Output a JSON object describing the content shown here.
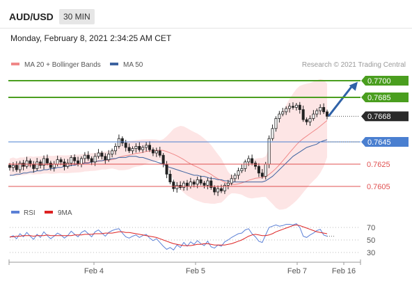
{
  "header": {
    "symbol": "AUD/USD",
    "timeframe": "30 MIN",
    "datetime": "Monday, February 8, 2021 2:34:25 AM CET"
  },
  "legend": {
    "ma20_label": "MA 20 + Bollinger Bands",
    "ma50_label": "MA 50",
    "copyright": "Research © 2021 Trading Central"
  },
  "rsi_legend": {
    "rsi_label": "RSI",
    "ma_label": "9MA"
  },
  "colors": {
    "resistance": "#4a9e1f",
    "support_blue": "#4a7fd0",
    "support_red": "#e05050",
    "last_price": "#2a2a2a",
    "candle": "#222222",
    "bollinger_fill": "#fde2e2",
    "ma20": "#f08888",
    "ma50": "#3d63a0",
    "arrow": "#2f62a8",
    "rsi": "#5b80d6",
    "rsi_ma": "#dd2222"
  },
  "chart_data": [
    {
      "type": "candlestick",
      "ylim": [
        0.7585,
        0.771
      ],
      "x_ticks": [
        "Feb 4",
        "Feb 5",
        "Feb 7",
        "Feb 16"
      ],
      "levels": [
        {
          "value": 0.77,
          "label": "0.7700",
          "kind": "resistance"
        },
        {
          "value": 0.7685,
          "label": "0.7685",
          "kind": "resistance"
        },
        {
          "value": 0.7668,
          "label": "0.7668",
          "kind": "last"
        },
        {
          "value": 0.7645,
          "label": "0.7645",
          "kind": "support_blue"
        },
        {
          "value": 0.7625,
          "label": "0.7625",
          "kind": "support_red"
        },
        {
          "value": 0.7605,
          "label": "0.7605",
          "kind": "support_red"
        }
      ],
      "closes": [
        0.7622,
        0.7624,
        0.762,
        0.7626,
        0.7623,
        0.7628,
        0.7625,
        0.7621,
        0.7627,
        0.7624,
        0.763,
        0.7626,
        0.7622,
        0.7625,
        0.7629,
        0.7627,
        0.7623,
        0.7626,
        0.7631,
        0.7628,
        0.7625,
        0.763,
        0.7633,
        0.763,
        0.7627,
        0.7632,
        0.7635,
        0.7632,
        0.7629,
        0.7634,
        0.7637,
        0.7641,
        0.7648,
        0.7644,
        0.764,
        0.7637,
        0.7639,
        0.7641,
        0.7638,
        0.764,
        0.7642,
        0.7638,
        0.7635,
        0.7637,
        0.7633,
        0.7625,
        0.7616,
        0.7609,
        0.7603,
        0.7606,
        0.7604,
        0.7608,
        0.7605,
        0.7609,
        0.7607,
        0.7611,
        0.7608,
        0.7606,
        0.761,
        0.7604,
        0.76,
        0.7603,
        0.7601,
        0.7606,
        0.7608,
        0.7612,
        0.7615,
        0.7619,
        0.7621,
        0.7627,
        0.763,
        0.7626,
        0.7623,
        0.7617,
        0.7614,
        0.7625,
        0.7648,
        0.7657,
        0.7666,
        0.767,
        0.7672,
        0.7675,
        0.7677,
        0.7676,
        0.7678,
        0.7674,
        0.7665,
        0.7663,
        0.7666,
        0.767,
        0.7673,
        0.7676,
        0.7672,
        0.7668
      ],
      "ma50": [
        0.7615,
        0.7615,
        0.7616,
        0.7616,
        0.7617,
        0.7617,
        0.7618,
        0.7618,
        0.7619,
        0.7619,
        0.762,
        0.762,
        0.7621,
        0.7621,
        0.7622,
        0.7622,
        0.7623,
        0.7623,
        0.7624,
        0.7624,
        0.7625,
        0.7625,
        0.7626,
        0.7626,
        0.7627,
        0.7627,
        0.7628,
        0.7628,
        0.7629,
        0.7629,
        0.763,
        0.763,
        0.7631,
        0.7631,
        0.7631,
        0.7632,
        0.7632,
        0.7632,
        0.7631,
        0.7631,
        0.763,
        0.7629,
        0.7628,
        0.7627,
        0.7626,
        0.7625,
        0.7623,
        0.7622,
        0.7621,
        0.762,
        0.7619,
        0.7618,
        0.7617,
        0.7616,
        0.7615,
        0.7615,
        0.7614,
        0.7614,
        0.7613,
        0.7612,
        0.7612,
        0.7611,
        0.7611,
        0.761,
        0.761,
        0.7609,
        0.7609,
        0.7609,
        0.7609,
        0.7609,
        0.7609,
        0.7609,
        0.7609,
        0.7609,
        0.7609,
        0.761,
        0.7612,
        0.7614,
        0.7617,
        0.762,
        0.7623,
        0.7626,
        0.7629,
        0.7632,
        0.7634,
        0.7636,
        0.7638,
        0.764,
        0.7641,
        0.7642,
        0.7643,
        0.7645,
        0.7646,
        0.7647
      ]
    },
    {
      "type": "line",
      "title": "RSI",
      "ylim": [
        20,
        80
      ],
      "y_ticks": [
        70,
        50,
        30
      ],
      "series": [
        {
          "name": "RSI",
          "values": [
            54,
            57,
            52,
            60,
            55,
            62,
            56,
            51,
            59,
            54,
            63,
            57,
            52,
            56,
            61,
            58,
            53,
            57,
            64,
            59,
            55,
            62,
            65,
            60,
            55,
            63,
            66,
            61,
            56,
            62,
            65,
            67,
            68,
            61,
            55,
            53,
            56,
            58,
            54,
            57,
            59,
            53,
            49,
            52,
            46,
            40,
            35,
            38,
            34,
            42,
            38,
            46,
            40,
            47,
            43,
            49,
            44,
            41,
            48,
            39,
            37,
            42,
            40,
            47,
            50,
            54,
            57,
            60,
            61,
            66,
            68,
            60,
            55,
            48,
            46,
            58,
            70,
            72,
            74,
            72,
            73,
            75,
            75,
            74,
            76,
            70,
            56,
            54,
            58,
            61,
            65,
            67,
            58,
            56
          ]
        },
        {
          "name": "9MA",
          "values": [
            55,
            55,
            56,
            56,
            57,
            57,
            57,
            56,
            57,
            57,
            57,
            58,
            57,
            57,
            57,
            57,
            57,
            57,
            57,
            58,
            58,
            58,
            59,
            59,
            59,
            60,
            60,
            60,
            61,
            61,
            61,
            62,
            63,
            63,
            62,
            62,
            61,
            60,
            59,
            58,
            57,
            56,
            55,
            54,
            52,
            50,
            48,
            46,
            44,
            43,
            42,
            41,
            41,
            41,
            42,
            43,
            43,
            44,
            44,
            43,
            42,
            42,
            42,
            42,
            43,
            44,
            46,
            48,
            50,
            53,
            56,
            58,
            59,
            58,
            57,
            57,
            58,
            60,
            63,
            65,
            67,
            69,
            71,
            73,
            74,
            73,
            71,
            69,
            67,
            65,
            63,
            62,
            61,
            60
          ]
        }
      ]
    }
  ]
}
